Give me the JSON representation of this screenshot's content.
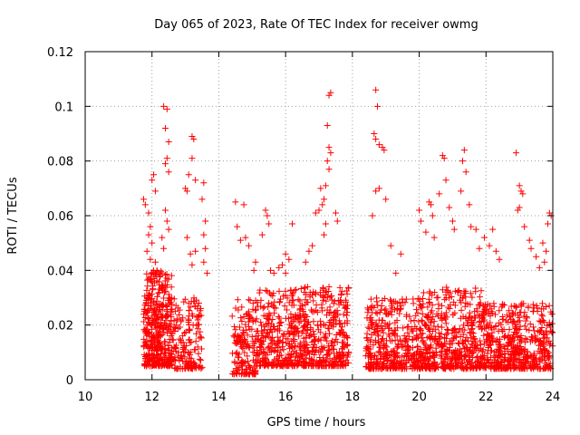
{
  "chart_data": {
    "type": "scatter",
    "title": "Day 065 of 2023, Rate Of TEC Index for receiver owmg",
    "xlabel": "GPS time / hours",
    "ylabel": "ROTI / TECUs",
    "xlim": [
      10,
      24
    ],
    "ylim": [
      0,
      0.12
    ],
    "x_ticks": [
      10,
      12,
      14,
      16,
      18,
      20,
      22,
      24
    ],
    "y_ticks": [
      0,
      0.02,
      0.04,
      0.06,
      0.08,
      0.1,
      0.12
    ],
    "x_tick_labels": [
      "10",
      "12",
      "14",
      "16",
      "18",
      "20",
      "22",
      "24"
    ],
    "y_tick_labels": [
      "0",
      "0.02",
      "0.04",
      "0.06",
      "0.08",
      "0.1",
      "0.12"
    ],
    "grid": true,
    "legend": "none",
    "marker": "plus",
    "color": "#ff0000",
    "series": [
      {
        "points": [
          [
            11.75,
            0.066
          ],
          [
            11.8,
            0.064
          ],
          [
            11.9,
            0.061
          ],
          [
            11.95,
            0.056
          ],
          [
            12.0,
            0.073
          ],
          [
            12.05,
            0.075
          ],
          [
            12.1,
            0.069
          ],
          [
            11.85,
            0.047
          ],
          [
            11.9,
            0.053
          ],
          [
            11.95,
            0.044
          ],
          [
            12.0,
            0.05
          ],
          [
            12.1,
            0.043
          ],
          [
            12.15,
            0.04
          ],
          [
            12.35,
            0.1
          ],
          [
            12.45,
            0.099
          ],
          [
            12.4,
            0.092
          ],
          [
            12.5,
            0.087
          ],
          [
            12.45,
            0.081
          ],
          [
            12.4,
            0.079
          ],
          [
            12.5,
            0.076
          ],
          [
            12.4,
            0.062
          ],
          [
            12.45,
            0.058
          ],
          [
            12.5,
            0.055
          ],
          [
            12.3,
            0.052
          ],
          [
            12.35,
            0.048
          ],
          [
            13.0,
            0.07
          ],
          [
            13.05,
            0.069
          ],
          [
            13.1,
            0.075
          ],
          [
            13.2,
            0.089
          ],
          [
            13.25,
            0.088
          ],
          [
            13.2,
            0.081
          ],
          [
            13.3,
            0.073
          ],
          [
            13.05,
            0.052
          ],
          [
            13.15,
            0.046
          ],
          [
            13.2,
            0.042
          ],
          [
            13.3,
            0.047
          ],
          [
            13.5,
            0.066
          ],
          [
            13.55,
            0.072
          ],
          [
            13.6,
            0.058
          ],
          [
            13.55,
            0.053
          ],
          [
            13.6,
            0.048
          ],
          [
            13.55,
            0.043
          ],
          [
            13.65,
            0.039
          ],
          [
            14.5,
            0.065
          ],
          [
            14.55,
            0.056
          ],
          [
            14.75,
            0.064
          ],
          [
            14.8,
            0.052
          ],
          [
            14.65,
            0.051
          ],
          [
            14.9,
            0.049
          ],
          [
            15.1,
            0.043
          ],
          [
            15.05,
            0.04
          ],
          [
            15.4,
            0.062
          ],
          [
            15.45,
            0.06
          ],
          [
            15.5,
            0.057
          ],
          [
            15.3,
            0.053
          ],
          [
            15.55,
            0.04
          ],
          [
            15.65,
            0.039
          ],
          [
            15.8,
            0.041
          ],
          [
            15.9,
            0.042
          ],
          [
            16.0,
            0.039
          ],
          [
            16.1,
            0.044
          ],
          [
            16.2,
            0.057
          ],
          [
            16.0,
            0.046
          ],
          [
            16.6,
            0.043
          ],
          [
            16.7,
            0.047
          ],
          [
            16.8,
            0.049
          ],
          [
            16.9,
            0.061
          ],
          [
            17.0,
            0.062
          ],
          [
            17.05,
            0.07
          ],
          [
            17.1,
            0.064
          ],
          [
            17.15,
            0.066
          ],
          [
            17.2,
            0.071
          ],
          [
            17.25,
            0.08
          ],
          [
            17.3,
            0.085
          ],
          [
            17.35,
            0.083
          ],
          [
            17.3,
            0.104
          ],
          [
            17.35,
            0.105
          ],
          [
            17.25,
            0.093
          ],
          [
            17.3,
            0.077
          ],
          [
            17.5,
            0.061
          ],
          [
            17.55,
            0.058
          ],
          [
            17.2,
            0.057
          ],
          [
            17.15,
            0.053
          ],
          [
            18.7,
            0.106
          ],
          [
            18.75,
            0.1
          ],
          [
            18.65,
            0.09
          ],
          [
            18.7,
            0.088
          ],
          [
            18.8,
            0.086
          ],
          [
            18.9,
            0.085
          ],
          [
            18.95,
            0.084
          ],
          [
            18.8,
            0.07
          ],
          [
            18.7,
            0.069
          ],
          [
            19.0,
            0.066
          ],
          [
            18.6,
            0.06
          ],
          [
            19.15,
            0.049
          ],
          [
            19.3,
            0.039
          ],
          [
            19.45,
            0.046
          ],
          [
            20.0,
            0.062
          ],
          [
            20.05,
            0.058
          ],
          [
            20.2,
            0.054
          ],
          [
            20.3,
            0.065
          ],
          [
            20.35,
            0.064
          ],
          [
            20.4,
            0.06
          ],
          [
            20.45,
            0.052
          ],
          [
            20.7,
            0.082
          ],
          [
            20.75,
            0.081
          ],
          [
            20.8,
            0.073
          ],
          [
            20.6,
            0.068
          ],
          [
            20.9,
            0.063
          ],
          [
            21.0,
            0.058
          ],
          [
            21.05,
            0.055
          ],
          [
            21.35,
            0.084
          ],
          [
            21.3,
            0.08
          ],
          [
            21.4,
            0.076
          ],
          [
            21.25,
            0.069
          ],
          [
            21.5,
            0.064
          ],
          [
            21.55,
            0.056
          ],
          [
            21.7,
            0.055
          ],
          [
            21.8,
            0.048
          ],
          [
            21.95,
            0.052
          ],
          [
            22.1,
            0.049
          ],
          [
            22.2,
            0.055
          ],
          [
            22.3,
            0.047
          ],
          [
            22.4,
            0.044
          ],
          [
            22.9,
            0.083
          ],
          [
            23.0,
            0.071
          ],
          [
            23.05,
            0.069
          ],
          [
            23.1,
            0.068
          ],
          [
            23.0,
            0.063
          ],
          [
            22.95,
            0.062
          ],
          [
            23.15,
            0.056
          ],
          [
            23.3,
            0.051
          ],
          [
            23.35,
            0.048
          ],
          [
            23.5,
            0.045
          ],
          [
            23.6,
            0.041
          ],
          [
            23.85,
            0.057
          ],
          [
            23.9,
            0.061
          ],
          [
            23.95,
            0.06
          ],
          [
            23.8,
            0.047
          ],
          [
            23.7,
            0.05
          ],
          [
            23.75,
            0.043
          ]
        ],
        "clusters": [
          {
            "x": [
              11.75,
              12.6
            ],
            "y": [
              0.005,
              0.04
            ],
            "count": 420
          },
          {
            "x": [
              12.6,
              13.5
            ],
            "y": [
              0.004,
              0.03
            ],
            "count": 170
          },
          {
            "x": [
              14.4,
              15.1
            ],
            "y": [
              0.002,
              0.03
            ],
            "count": 150
          },
          {
            "x": [
              15.1,
              16.0
            ],
            "y": [
              0.005,
              0.033
            ],
            "count": 200
          },
          {
            "x": [
              16.0,
              17.9
            ],
            "y": [
              0.005,
              0.034
            ],
            "count": 480
          },
          {
            "x": [
              18.4,
              20.0
            ],
            "y": [
              0.004,
              0.03
            ],
            "count": 380
          },
          {
            "x": [
              20.0,
              22.0
            ],
            "y": [
              0.004,
              0.034
            ],
            "count": 520
          },
          {
            "x": [
              22.0,
              24.0
            ],
            "y": [
              0.004,
              0.028
            ],
            "count": 480
          }
        ]
      }
    ]
  }
}
